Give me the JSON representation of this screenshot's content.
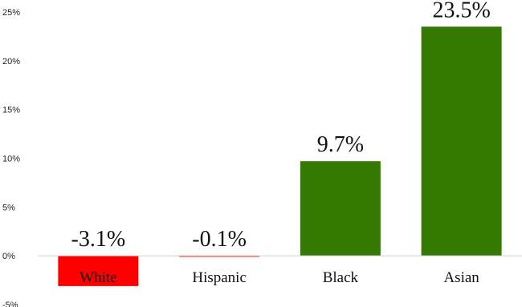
{
  "chart_data": {
    "type": "bar",
    "categories": [
      "White",
      "Hispanic",
      "Black",
      "Asian"
    ],
    "values": [
      -3.1,
      -0.1,
      9.7,
      23.5
    ],
    "value_labels": [
      "-3.1%",
      "-0.1%",
      "9.7%",
      "23.5%"
    ],
    "bar_colors": [
      "#ff0000",
      "#ff0000",
      "#357a00",
      "#357a00"
    ],
    "ylim": [
      -5,
      25
    ],
    "yticks": [
      25,
      20,
      15,
      10,
      5,
      0,
      -5
    ],
    "ytick_labels": [
      "25%",
      "20%",
      "15%",
      "10%",
      "5%",
      "0%",
      "-5%"
    ],
    "grid": false,
    "title": "",
    "xlabel": "",
    "ylabel": ""
  }
}
